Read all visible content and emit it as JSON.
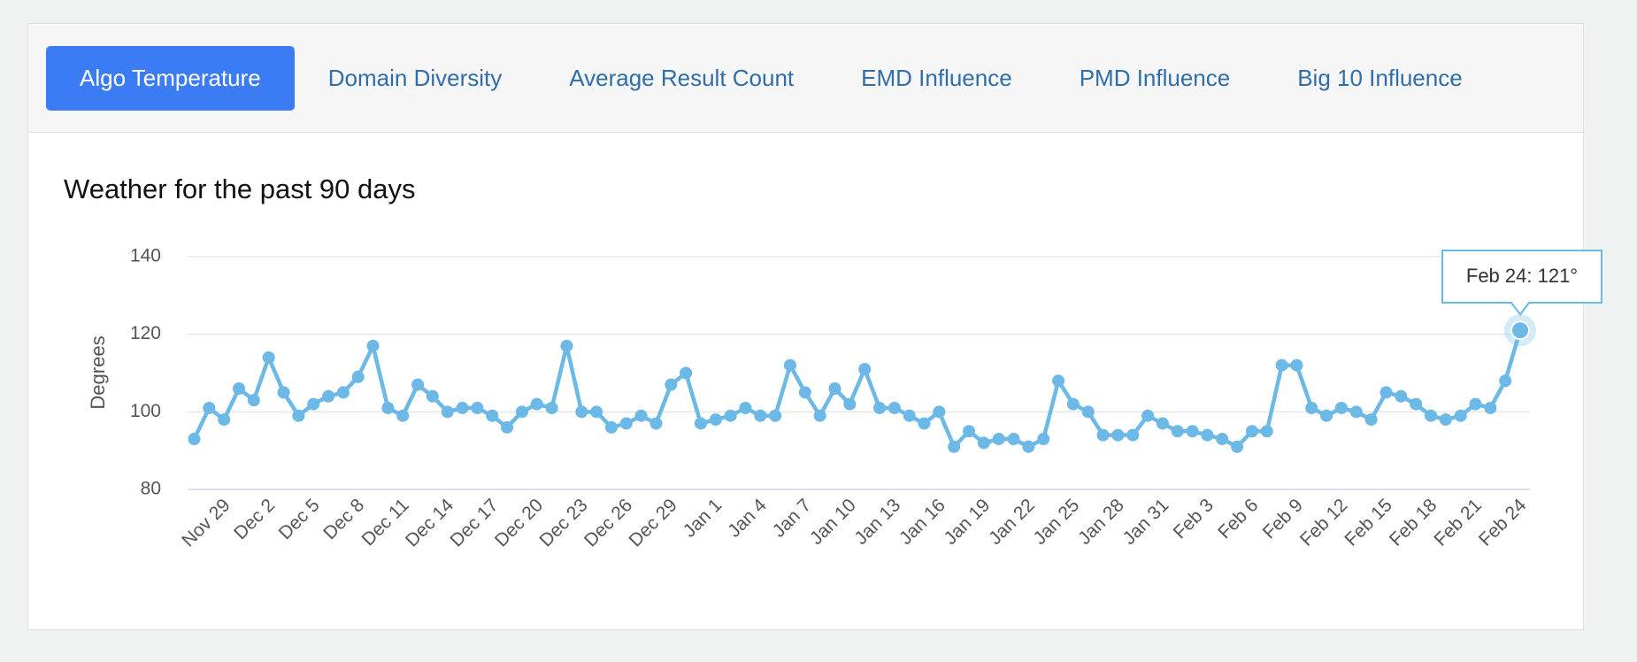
{
  "tabs": [
    "Algo Temperature",
    "Domain Diversity",
    "Average Result Count",
    "EMD Influence",
    "PMD Influence",
    "Big 10 Influence"
  ],
  "active_tab": 0,
  "chart_data": {
    "type": "line",
    "title": "Weather for the past 90 days",
    "ylabel": "Degrees",
    "categories": [
      null,
      null,
      "Nov 29",
      null,
      null,
      "Dec 2",
      null,
      null,
      "Dec 5",
      null,
      null,
      "Dec 8",
      null,
      null,
      "Dec 11",
      null,
      null,
      "Dec 14",
      null,
      null,
      "Dec 17",
      null,
      null,
      "Dec 20",
      null,
      null,
      "Dec 23",
      null,
      null,
      "Dec 26",
      null,
      null,
      "Dec 29",
      null,
      null,
      "Jan 1",
      null,
      null,
      "Jan 4",
      null,
      null,
      "Jan 7",
      null,
      null,
      "Jan 10",
      null,
      null,
      "Jan 13",
      null,
      null,
      "Jan 16",
      null,
      null,
      "Jan 19",
      null,
      null,
      "Jan 22",
      null,
      null,
      "Jan 25",
      null,
      null,
      "Jan 28",
      null,
      null,
      "Jan 31",
      null,
      null,
      "Feb 3",
      null,
      null,
      "Feb 6",
      null,
      null,
      "Feb 9",
      null,
      null,
      "Feb 12",
      null,
      null,
      "Feb 15",
      null,
      null,
      "Feb 18",
      null,
      null,
      "Feb 21",
      null,
      null,
      "Feb 24"
    ],
    "values": [
      93,
      101,
      98,
      106,
      103,
      114,
      105,
      99,
      102,
      104,
      105,
      109,
      117,
      101,
      99,
      107,
      104,
      100,
      101,
      101,
      99,
      96,
      100,
      102,
      101,
      117,
      100,
      100,
      96,
      97,
      99,
      97,
      107,
      110,
      97,
      98,
      99,
      101,
      99,
      99,
      112,
      105,
      99,
      106,
      102,
      111,
      101,
      101,
      99,
      97,
      100,
      91,
      95,
      92,
      93,
      93,
      91,
      93,
      108,
      102,
      100,
      94,
      94,
      94,
      99,
      97,
      95,
      95,
      94,
      93,
      91,
      95,
      95,
      112,
      112,
      101,
      99,
      101,
      100,
      98,
      105,
      104,
      102,
      99,
      98,
      99,
      102,
      101,
      108,
      121
    ],
    "color": "#6cb8e6",
    "ylim": [
      80,
      140
    ],
    "yticks": [
      80,
      100,
      120,
      140
    ],
    "grid": true,
    "tooltip": "Feb 24: 121°",
    "highlight": 89
  }
}
